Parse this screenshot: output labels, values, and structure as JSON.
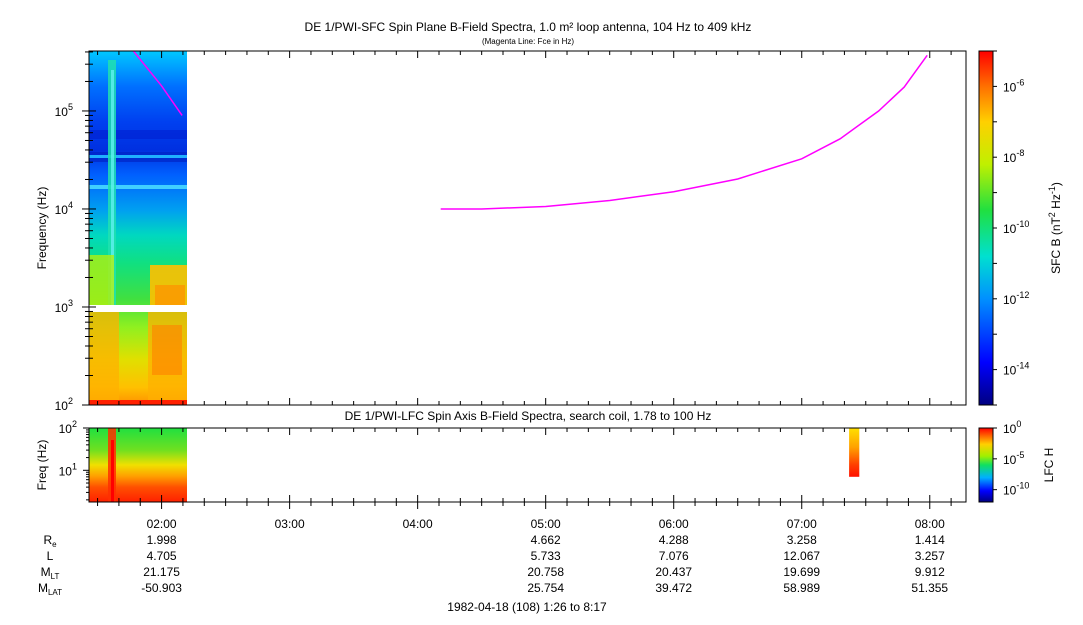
{
  "top_panel": {
    "title": "DE 1/PWI-SFC  Spin Plane B-Field Spectra, 1.0 m² loop antenna, 104 Hz to 409 kHz",
    "subtitle": "(Magenta Line: Fce in Hz)",
    "ylabel": "Frequency (Hz)",
    "ytick_labels": [
      {
        "base": "10",
        "exp": "2",
        "value": 100
      },
      {
        "base": "10",
        "exp": "3",
        "value": 1000
      },
      {
        "base": "10",
        "exp": "4",
        "value": 10000
      },
      {
        "base": "10",
        "exp": "5",
        "value": 100000
      }
    ],
    "colorbar": {
      "label_base": "SFC B (nT",
      "label_exp1": "2",
      "label_mid": " Hz",
      "label_exp2": "-1",
      "label_end": ")",
      "ticks": [
        {
          "base": "10",
          "exp": "-6",
          "value": -6
        },
        {
          "base": "10",
          "exp": "-8",
          "value": -8
        },
        {
          "base": "10",
          "exp": "-10",
          "value": -10
        },
        {
          "base": "10",
          "exp": "-12",
          "value": -12
        },
        {
          "base": "10",
          "exp": "-14",
          "value": -14
        }
      ]
    }
  },
  "bottom_panel": {
    "title": "DE 1/PWI-LFC  Spin Axis B-Field Spectra, search coil, 1.78 to 100 Hz",
    "ylabel": "Freq (Hz)",
    "ytick_labels": [
      {
        "base": "10",
        "exp": "1",
        "value": 10
      },
      {
        "base": "10",
        "exp": "2",
        "value": 100
      }
    ],
    "colorbar": {
      "label": "LFC H",
      "ticks": [
        {
          "base": "10",
          "exp": "0",
          "value": 0
        },
        {
          "base": "10",
          "exp": "-5",
          "value": -5
        },
        {
          "base": "10",
          "exp": "-10",
          "value": -10
        }
      ]
    }
  },
  "x_axis": {
    "tick_labels": [
      "02:00",
      "03:00",
      "04:00",
      "05:00",
      "06:00",
      "07:00",
      "08:00"
    ],
    "caption": "1982-04-18 (108) 1:26 to 8:17"
  },
  "ephemeris": {
    "rows": [
      {
        "label": "R",
        "sub": "e",
        "values": [
          "1.998",
          "",
          "",
          "4.662",
          "4.288",
          "3.258",
          "1.414"
        ]
      },
      {
        "label": "L",
        "sub": "",
        "values": [
          "4.705",
          "",
          "",
          "5.733",
          "7.076",
          "12.067",
          "3.257"
        ]
      },
      {
        "label": "M",
        "sub": "LT",
        "values": [
          "21.175",
          "",
          "",
          "20.758",
          "20.437",
          "19.699",
          "9.912"
        ]
      },
      {
        "label": "M",
        "sub": "LAT",
        "values": [
          "-50.903",
          "",
          "",
          "25.754",
          "39.472",
          "58.989",
          "51.355"
        ]
      }
    ]
  },
  "chart_data": [
    {
      "type": "heatmap",
      "title": "DE 1/PWI-SFC  Spin Plane B-Field Spectra, 1.0 m² loop antenna, 104 Hz to 409 kHz",
      "subtitle": "(Magenta Line: Fce in Hz)",
      "xlabel": "",
      "ylabel": "Frequency (Hz)",
      "x_range_hours": [
        1.433,
        8.283
      ],
      "y_range_hz": [
        100,
        409000
      ],
      "y_scale": "log",
      "colorbar_scale": "log",
      "colorbar_range_exp": [
        -15,
        -5
      ],
      "data_coverage_hours": [
        1.433,
        2.2
      ],
      "data_gap_hz": [
        900,
        1050
      ],
      "fce_line": {
        "color": "#ff00ff",
        "points": [
          {
            "time": 1.78,
            "hz": 420000
          },
          {
            "time": 2.0,
            "hz": 180000
          },
          {
            "time": 2.16,
            "hz": 90000
          },
          {
            "time": 4.18,
            "hz": 10000
          },
          {
            "time": 4.5,
            "hz": 10000
          },
          {
            "time": 5.0,
            "hz": 10600
          },
          {
            "time": 5.5,
            "hz": 12200
          },
          {
            "time": 6.0,
            "hz": 15000
          },
          {
            "time": 6.5,
            "hz": 20200
          },
          {
            "time": 7.0,
            "hz": 32500
          },
          {
            "time": 7.3,
            "hz": 52000
          },
          {
            "time": 7.6,
            "hz": 100000
          },
          {
            "time": 7.8,
            "hz": 175000
          },
          {
            "time": 7.98,
            "hz": 370000
          }
        ]
      }
    },
    {
      "type": "heatmap",
      "title": "DE 1/PWI-LFC  Spin Axis B-Field Spectra, search coil, 1.78 to 100 Hz",
      "xlabel": "",
      "ylabel": "Freq (Hz)",
      "x_range_hours": [
        1.433,
        8.283
      ],
      "y_range_hz": [
        1.78,
        100
      ],
      "y_scale": "log",
      "colorbar_scale": "log",
      "colorbar_range_exp": [
        -12,
        0
      ],
      "data_coverage_hours": [
        1.433,
        2.2
      ],
      "burst": {
        "time_start_hours": 7.37,
        "time_end_hours": 7.45,
        "y_range_hz": [
          7,
          100
        ]
      }
    }
  ]
}
